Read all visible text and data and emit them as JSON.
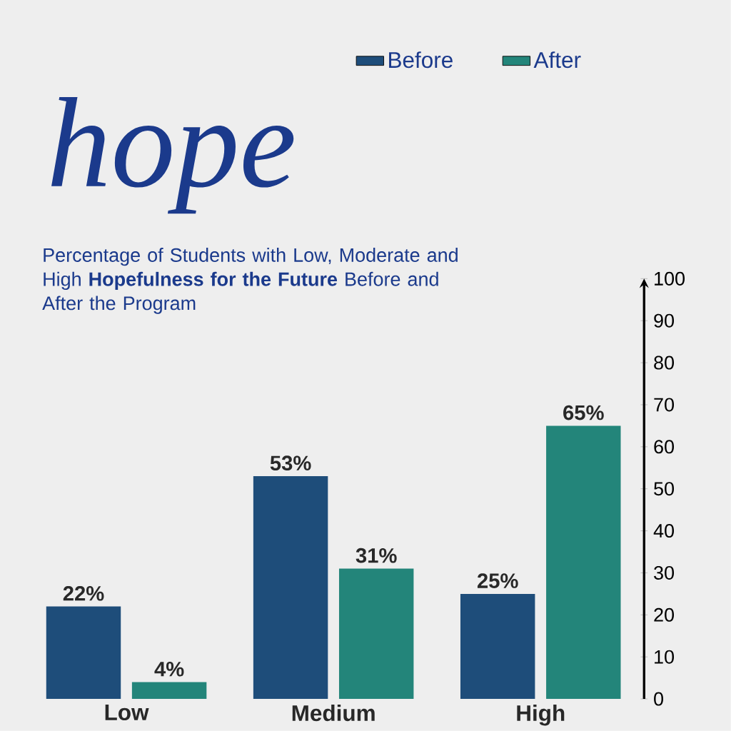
{
  "chart_data": {
    "type": "bar",
    "title": "hope",
    "subtitle": "Percentage of Students with Low, Moderate and High **Hopefulness for the Future** Before and After the Program",
    "categories": [
      "Low",
      "Medium",
      "High"
    ],
    "series": [
      {
        "name": "Before",
        "color": "#1e4d7a",
        "values": [
          22,
          53,
          25
        ],
        "value_labels": [
          "22%",
          "53%",
          "25%"
        ]
      },
      {
        "name": "After",
        "color": "#23857a",
        "values": [
          4,
          31,
          65
        ],
        "value_labels": [
          "4%",
          "31%",
          "65%"
        ]
      }
    ],
    "ylim": [
      0,
      100
    ],
    "yticks": [
      0,
      10,
      20,
      30,
      40,
      50,
      60,
      70,
      80,
      90,
      100
    ],
    "legend": "top",
    "grid": false
  }
}
